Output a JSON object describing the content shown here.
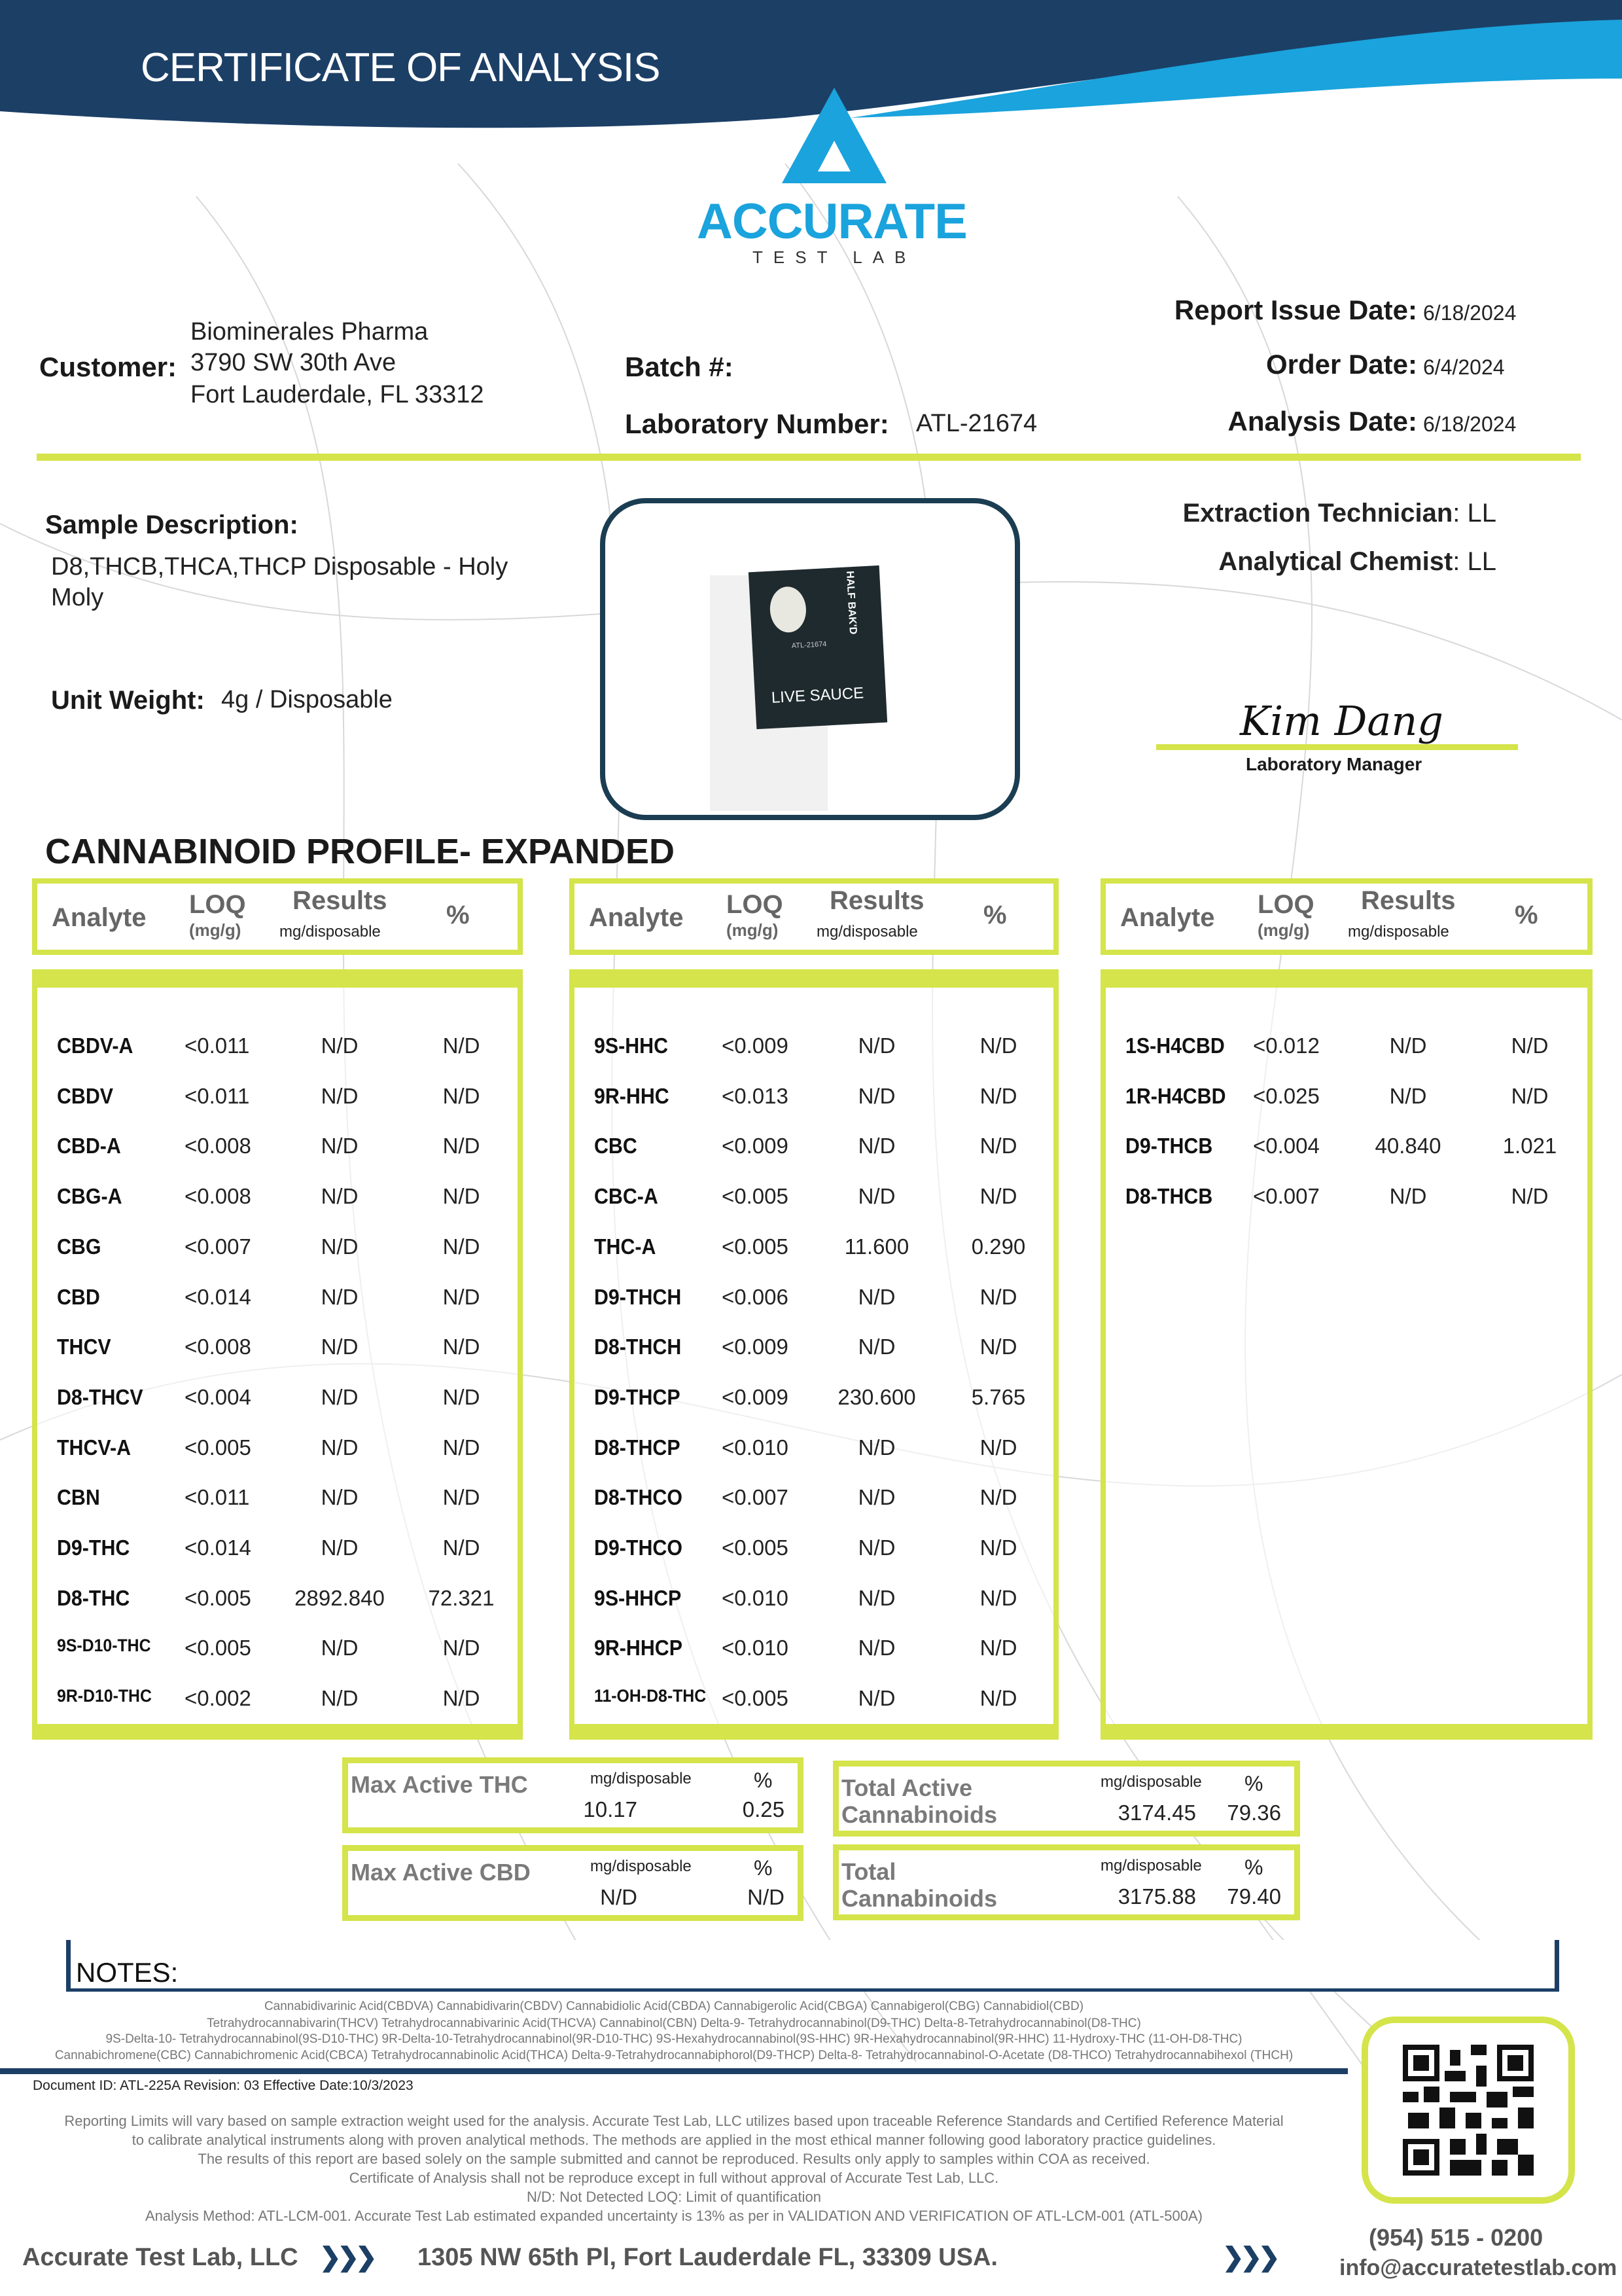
{
  "header": {
    "title": "CERTIFICATE OF ANALYSIS"
  },
  "logo": {
    "name": "ACCURATE",
    "sub": "TEST LAB"
  },
  "customer": {
    "label": "Customer:",
    "name": "Biominerales Pharma",
    "address1": "3790 SW 30th Ave",
    "address2": "Fort Lauderdale, FL 33312"
  },
  "batch": {
    "label": "Batch #:",
    "value": ""
  },
  "lab_number": {
    "label": "Laboratory Number:",
    "value": "ATL-21674"
  },
  "dates": {
    "report_issue": {
      "label": "Report Issue Date:",
      "value": "6/18/2024"
    },
    "order": {
      "label": "Order Date:",
      "value": "6/4/2024"
    },
    "analysis": {
      "label": "Analysis Date:",
      "value": "6/18/2024"
    }
  },
  "sample": {
    "label": "Sample Description:",
    "line1": "D8,THCB,THCA,THCP Disposable - Holy",
    "line2": "Moly",
    "unit_weight_label": "Unit Weight:",
    "unit_weight": "4g / Disposable"
  },
  "product_image": {
    "text": "LIVE SAUCE",
    "brand": "HALF BAK'D",
    "label": "ATL-21674"
  },
  "staff": {
    "extraction_label": "Extraction Technician",
    "extraction": ": LL",
    "chemist_label": "Analytical Chemist",
    "chemist": ": LL",
    "signature": "Kim Dang",
    "manager_label": "Laboratory Manager"
  },
  "section_title": "CANNABINOID PROFILE- EXPANDED",
  "table_header": {
    "analyte": "Analyte",
    "loq": "LOQ",
    "loq_unit": "(mg/g)",
    "results": "Results",
    "results_unit": "mg/disposable",
    "pct": "%"
  },
  "tables": [
    {
      "rows": [
        [
          "CBDV-A",
          "<0.011",
          "N/D",
          "N/D"
        ],
        [
          "CBDV",
          "<0.011",
          "N/D",
          "N/D"
        ],
        [
          "CBD-A",
          "<0.008",
          "N/D",
          "N/D"
        ],
        [
          "CBG-A",
          "<0.008",
          "N/D",
          "N/D"
        ],
        [
          "CBG",
          "<0.007",
          "N/D",
          "N/D"
        ],
        [
          "CBD",
          "<0.014",
          "N/D",
          "N/D"
        ],
        [
          "THCV",
          "<0.008",
          "N/D",
          "N/D"
        ],
        [
          "D8-THCV",
          "<0.004",
          "N/D",
          "N/D"
        ],
        [
          "THCV-A",
          "<0.005",
          "N/D",
          "N/D"
        ],
        [
          "CBN",
          "<0.011",
          "N/D",
          "N/D"
        ],
        [
          "D9-THC",
          "<0.014",
          "N/D",
          "N/D"
        ],
        [
          "D8-THC",
          "<0.005",
          "2892.840",
          "72.321"
        ],
        [
          "9S-D10-THC",
          "<0.005",
          "N/D",
          "N/D"
        ],
        [
          "9R-D10-THC",
          "<0.002",
          "N/D",
          "N/D"
        ]
      ]
    },
    {
      "rows": [
        [
          "9S-HHC",
          "<0.009",
          "N/D",
          "N/D"
        ],
        [
          "9R-HHC",
          "<0.013",
          "N/D",
          "N/D"
        ],
        [
          "CBC",
          "<0.009",
          "N/D",
          "N/D"
        ],
        [
          "CBC-A",
          "<0.005",
          "N/D",
          "N/D"
        ],
        [
          "THC-A",
          "<0.005",
          "11.600",
          "0.290"
        ],
        [
          "D9-THCH",
          "<0.006",
          "N/D",
          "N/D"
        ],
        [
          "D8-THCH",
          "<0.009",
          "N/D",
          "N/D"
        ],
        [
          "D9-THCP",
          "<0.009",
          "230.600",
          "5.765"
        ],
        [
          "D8-THCP",
          "<0.010",
          "N/D",
          "N/D"
        ],
        [
          "D8-THCO",
          "<0.007",
          "N/D",
          "N/D"
        ],
        [
          "D9-THCO",
          "<0.005",
          "N/D",
          "N/D"
        ],
        [
          "9S-HHCP",
          "<0.010",
          "N/D",
          "N/D"
        ],
        [
          "9R-HHCP",
          "<0.010",
          "N/D",
          "N/D"
        ],
        [
          "11-OH-D8-THC",
          "<0.005",
          "N/D",
          "N/D"
        ]
      ]
    },
    {
      "rows": [
        [
          "1S-H4CBD",
          "<0.012",
          "N/D",
          "N/D"
        ],
        [
          "1R-H4CBD",
          "<0.025",
          "N/D",
          "N/D"
        ],
        [
          "D9-THCB",
          "<0.004",
          "40.840",
          "1.021"
        ],
        [
          "D8-THCB",
          "<0.007",
          "N/D",
          "N/D"
        ]
      ]
    }
  ],
  "summary": [
    {
      "title": "Max Active THC",
      "unit": "mg/disposable",
      "pct_label": "%",
      "mg": "10.17",
      "pct": "0.25"
    },
    {
      "title": "Max Active CBD",
      "unit": "mg/disposable",
      "pct_label": "%",
      "mg": "N/D",
      "pct": "N/D"
    },
    {
      "title": "Total Active Cannabinoids",
      "unit": "mg/disposable",
      "pct_label": "%",
      "mg": "3174.45",
      "pct": "79.36"
    },
    {
      "title": "Total Cannabinoids",
      "unit": "mg/disposable",
      "pct_label": "%",
      "mg": "3175.88",
      "pct": "79.40"
    }
  ],
  "notes": {
    "label": "NOTES:"
  },
  "abbreviations": [
    "Cannabidivarinic Acid(CBDVA) Cannabidivarin(CBDV) Cannabidiolic Acid(CBDA) Cannabigerolic Acid(CBGA) Cannabigerol(CBG) Cannabidiol(CBD)",
    "Tetrahydrocannabivarin(THCV) Tetrahydrocannabivarinic Acid(THCVA) Cannabinol(CBN) Delta-9- Tetrahydrocannabinol(D9-THC) Delta-8-Tetrahydrocannabinol(D8-THC)",
    "9S-Delta-10- Tetrahydrocannabinol(9S-D10-THC) 9R-Delta-10-Tetrahydrocannabinol(9R-D10-THC) 9S-Hexahydrocannabinol(9S-HHC) 9R-Hexahydrocannabinol(9R-HHC) 11-Hydroxy-THC (11-OH-D8-THC)",
    "Cannabichromene(CBC) Cannabichromenic Acid(CBCA) Tetrahydrocannabinolic Acid(THCA) Delta-9-Tetrahydrocannabiphorol(D9-THCP) Delta-8- Tetrahydrocannabinol-O-Acetate (D8-THCO) Tetrahydrocannabihexol (THCH)"
  ],
  "document_id": "Document ID: ATL-225A   Revision: 03    Effective Date:10/3/2023",
  "disclaimer": [
    "Reporting Limits will vary based on sample extraction weight used for the analysis. Accurate Test Lab, LLC utilizes based upon traceable Reference Standards and Certified Reference Material",
    "to calibrate analytical instruments along with proven analytical methods. The methods are applied in the most ethical manner following good laboratory practice guidelines.",
    "The results of this report are based solely on the sample submitted and cannot be reproduced. Results only apply to samples within COA as received.",
    "Certificate of Analysis shall not be reproduce except in full without approval of Accurate Test Lab, LLC.",
    "N/D: Not Detected   LOQ: Limit of quantification",
    "Analysis Method: ATL-LCM-001.    Accurate Test Lab estimated expanded uncertainty is 13% as per in VALIDATION AND VERIFICATION OF ATL-LCM-001 (ATL-500A)"
  ],
  "footer": {
    "company": "Accurate Test Lab, LLC",
    "address": "1305 NW 65th Pl, Fort Lauderdale FL, 33309 USA.",
    "phone": "(954) 515 - 0200",
    "email": "info@accuratetestlab.com",
    "chevrons": "❯❯❯"
  },
  "colors": {
    "navy": "#1c3f66",
    "accent_blue": "#1aa3dc",
    "lime": "#d4e44a"
  }
}
